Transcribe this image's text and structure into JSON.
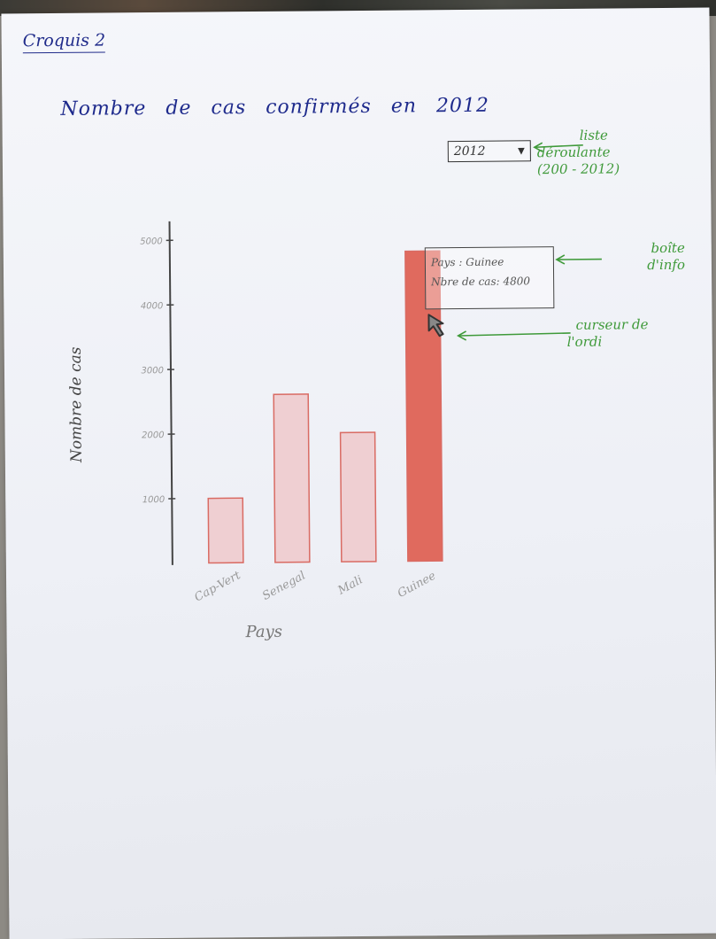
{
  "sketch": {
    "title": "Croquis 2"
  },
  "chart_title": "Nombre de cas confirmés en 2012",
  "dropdown": {
    "selected": "2012"
  },
  "annotations": {
    "dropdown_line1": "liste",
    "dropdown_line2": "déroulante",
    "dropdown_line3": "(200 - 2012)",
    "tooltip_line1": "boîte",
    "tooltip_line2": "d'info",
    "cursor_line1": "curseur de",
    "cursor_line2": "l'ordi"
  },
  "tooltip": {
    "line1": "Pays : Guinee",
    "line2": "Nbre de cas: 4800"
  },
  "chart_data": {
    "type": "bar",
    "title": "Nombre de cas confirmés en 2012",
    "xlabel": "Pays",
    "ylabel": "Nombre de cas",
    "categories": [
      "Cap-Vert",
      "Senegal",
      "Mali",
      "Guinee"
    ],
    "values": [
      1000,
      2600,
      2000,
      4800
    ],
    "highlighted_category": "Guinee",
    "yticks": [
      1000,
      2000,
      3000,
      4000,
      5000
    ],
    "ytick_labels": [
      "1000",
      "2000",
      "3000",
      "4000",
      "5000"
    ],
    "ylim": [
      0,
      5200
    ],
    "colors": {
      "bar_outline": "#d96b63",
      "bar_fill": "#efcfd2",
      "highlight_fill": "#e06a5e"
    }
  }
}
